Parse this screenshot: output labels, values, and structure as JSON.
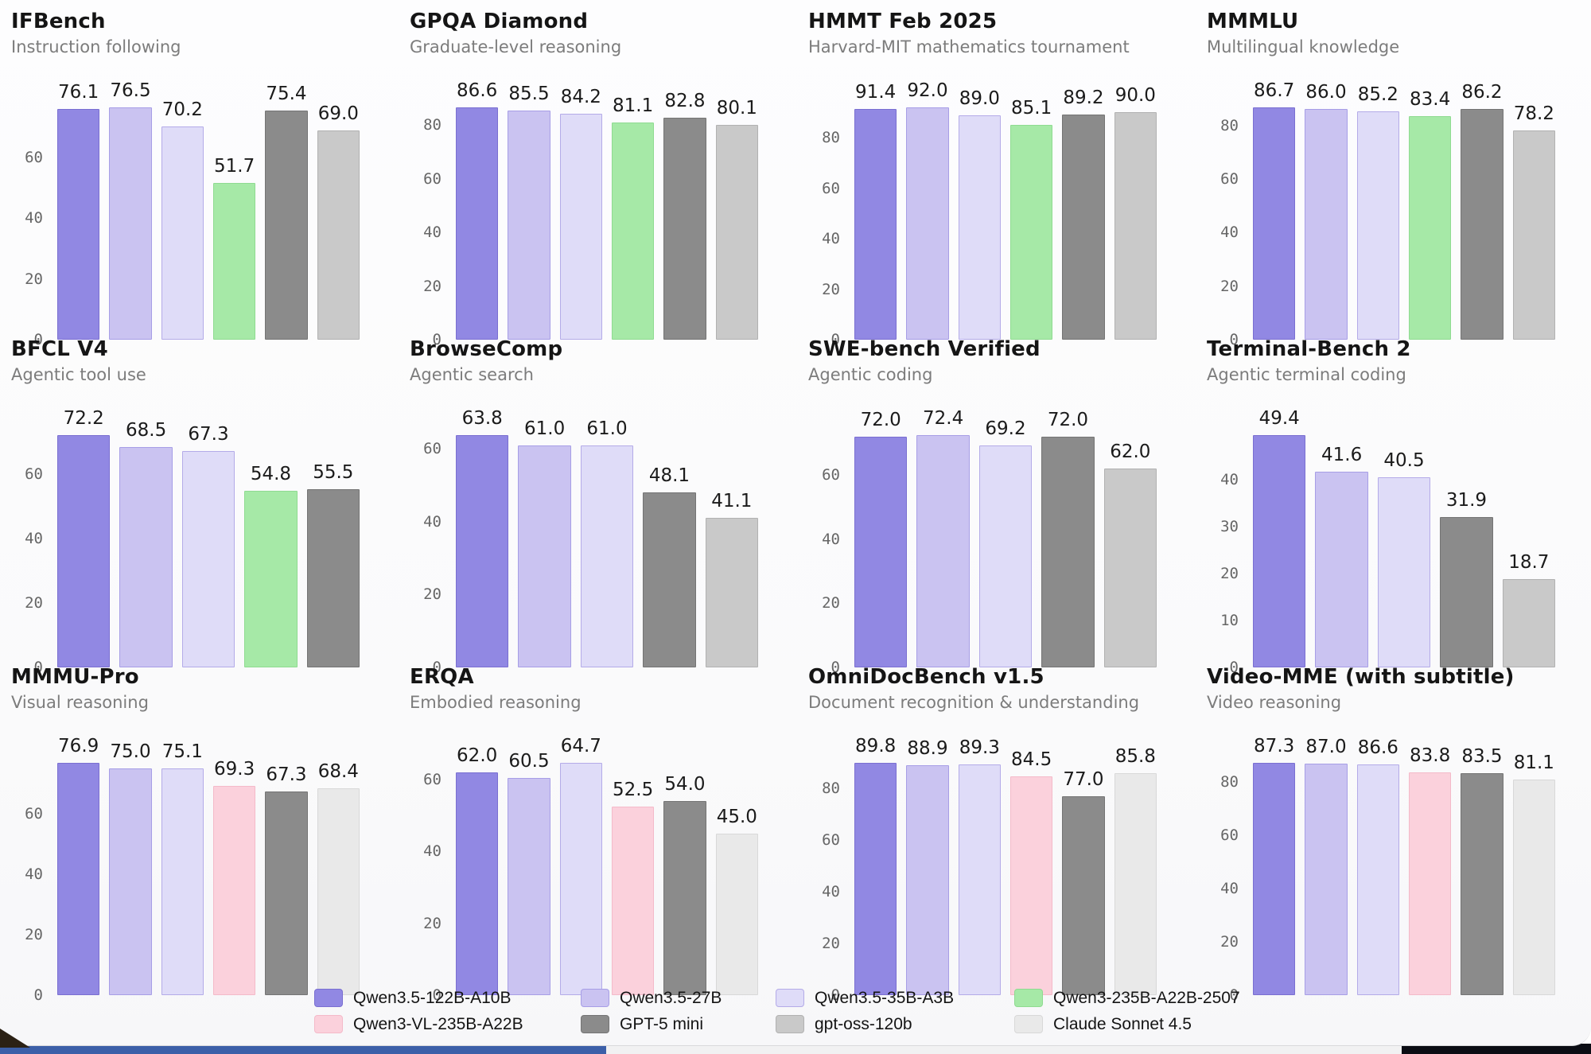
{
  "models": [
    {
      "name": "Qwen3.5-122B-A10B",
      "fill": "#9188e3",
      "border": "#7a6fd1"
    },
    {
      "name": "Qwen3.5-27B",
      "fill": "#cac3f1",
      "border": "#a79ee6"
    },
    {
      "name": "Qwen3.5-35B-A3B",
      "fill": "#dfdcf8",
      "border": "#b4abe8"
    },
    {
      "name": "Qwen3-235B-A22B-2507",
      "fill": "#a6e9a7",
      "border": "#8fdb91"
    },
    {
      "name": "Qwen3-VL-235B-A22B",
      "fill": "#fbd1dc",
      "border": "#f4bac9"
    },
    {
      "name": "GPT-5 mini",
      "fill": "#8b8b8b",
      "border": "#747474"
    },
    {
      "name": "gpt-oss-120b",
      "fill": "#c9c9c9",
      "border": "#b1b1b1"
    },
    {
      "name": "Claude Sonnet 4.5",
      "fill": "#e9e9e9",
      "border": "#d8d8d8"
    }
  ],
  "chart_data": [
    {
      "type": "bar",
      "title": "IFBench",
      "subtitle": "Instruction following",
      "yticks": [
        0,
        20,
        40,
        60
      ],
      "ylim": [
        0,
        76.5
      ],
      "categories": [
        "Qwen3.5-122B-A10B",
        "Qwen3.5-27B",
        "Qwen3.5-35B-A3B",
        "Qwen3-235B-A22B-2507",
        "GPT-5 mini",
        "gpt-oss-120b"
      ],
      "values": [
        76.1,
        76.5,
        70.2,
        51.7,
        75.4,
        69.0
      ]
    },
    {
      "type": "bar",
      "title": "GPQA Diamond",
      "subtitle": "Graduate-level reasoning",
      "yticks": [
        0,
        20,
        40,
        60,
        80
      ],
      "ylim": [
        0,
        86.6
      ],
      "categories": [
        "Qwen3.5-122B-A10B",
        "Qwen3.5-27B",
        "Qwen3.5-35B-A3B",
        "Qwen3-235B-A22B-2507",
        "GPT-5 mini",
        "gpt-oss-120b"
      ],
      "values": [
        86.6,
        85.5,
        84.2,
        81.1,
        82.8,
        80.1
      ]
    },
    {
      "type": "bar",
      "title": "HMMT Feb 2025",
      "subtitle": "Harvard-MIT mathematics tournament",
      "yticks": [
        0,
        20,
        40,
        60,
        80
      ],
      "ylim": [
        0,
        92.0
      ],
      "categories": [
        "Qwen3.5-122B-A10B",
        "Qwen3.5-27B",
        "Qwen3.5-35B-A3B",
        "Qwen3-235B-A22B-2507",
        "GPT-5 mini",
        "gpt-oss-120b"
      ],
      "values": [
        91.4,
        92.0,
        89.0,
        85.1,
        89.2,
        90.0
      ]
    },
    {
      "type": "bar",
      "title": "MMMLU",
      "subtitle": "Multilingual knowledge",
      "yticks": [
        0,
        20,
        40,
        60,
        80
      ],
      "ylim": [
        0,
        86.7
      ],
      "categories": [
        "Qwen3.5-122B-A10B",
        "Qwen3.5-27B",
        "Qwen3.5-35B-A3B",
        "Qwen3-235B-A22B-2507",
        "GPT-5 mini",
        "gpt-oss-120b"
      ],
      "values": [
        86.7,
        86.0,
        85.2,
        83.4,
        86.2,
        78.2
      ]
    },
    {
      "type": "bar",
      "title": "BFCL V4",
      "subtitle": "Agentic tool use",
      "yticks": [
        0,
        20,
        40,
        60
      ],
      "ylim": [
        0,
        72.2
      ],
      "categories": [
        "Qwen3.5-122B-A10B",
        "Qwen3.5-27B",
        "Qwen3.5-35B-A3B",
        "Qwen3-235B-A22B-2507",
        "GPT-5 mini"
      ],
      "values": [
        72.2,
        68.5,
        67.3,
        54.8,
        55.5
      ]
    },
    {
      "type": "bar",
      "title": "BrowseComp",
      "subtitle": "Agentic search",
      "yticks": [
        0,
        20,
        40,
        60
      ],
      "ylim": [
        0,
        63.8
      ],
      "categories": [
        "Qwen3.5-122B-A10B",
        "Qwen3.5-27B",
        "Qwen3.5-35B-A3B",
        "GPT-5 mini",
        "gpt-oss-120b"
      ],
      "values": [
        63.8,
        61.0,
        61.0,
        48.1,
        41.1
      ]
    },
    {
      "type": "bar",
      "title": "SWE-bench Verified",
      "subtitle": "Agentic coding",
      "yticks": [
        0,
        20,
        40,
        60
      ],
      "ylim": [
        0,
        72.4
      ],
      "categories": [
        "Qwen3.5-122B-A10B",
        "Qwen3.5-27B",
        "Qwen3.5-35B-A3B",
        "GPT-5 mini",
        "gpt-oss-120b"
      ],
      "values": [
        72.0,
        72.4,
        69.2,
        72.0,
        62.0
      ]
    },
    {
      "type": "bar",
      "title": "Terminal-Bench 2",
      "subtitle": "Agentic terminal coding",
      "yticks": [
        0,
        10,
        20,
        30,
        40
      ],
      "ylim": [
        0,
        49.4
      ],
      "categories": [
        "Qwen3.5-122B-A10B",
        "Qwen3.5-27B",
        "Qwen3.5-35B-A3B",
        "GPT-5 mini",
        "gpt-oss-120b"
      ],
      "values": [
        49.4,
        41.6,
        40.5,
        31.9,
        18.7
      ]
    },
    {
      "type": "bar",
      "title": "MMMU-Pro",
      "subtitle": "Visual reasoning",
      "yticks": [
        0,
        20,
        40,
        60
      ],
      "ylim": [
        0,
        76.9
      ],
      "categories": [
        "Qwen3.5-122B-A10B",
        "Qwen3.5-27B",
        "Qwen3.5-35B-A3B",
        "Qwen3-VL-235B-A22B",
        "GPT-5 mini",
        "Claude Sonnet 4.5"
      ],
      "values": [
        76.9,
        75.0,
        75.1,
        69.3,
        67.3,
        68.4
      ]
    },
    {
      "type": "bar",
      "title": "ERQA",
      "subtitle": "Embodied reasoning",
      "yticks": [
        0,
        20,
        40,
        60
      ],
      "ylim": [
        0,
        64.7
      ],
      "categories": [
        "Qwen3.5-122B-A10B",
        "Qwen3.5-27B",
        "Qwen3.5-35B-A3B",
        "Qwen3-VL-235B-A22B",
        "GPT-5 mini",
        "Claude Sonnet 4.5"
      ],
      "values": [
        62.0,
        60.5,
        64.7,
        52.5,
        54.0,
        45.0
      ]
    },
    {
      "type": "bar",
      "title": "OmniDocBench v1.5",
      "subtitle": "Document recognition & understanding",
      "yticks": [
        0,
        20,
        40,
        60,
        80
      ],
      "ylim": [
        0,
        89.8
      ],
      "categories": [
        "Qwen3.5-122B-A10B",
        "Qwen3.5-27B",
        "Qwen3.5-35B-A3B",
        "Qwen3-VL-235B-A22B",
        "GPT-5 mini",
        "Claude Sonnet 4.5"
      ],
      "values": [
        89.8,
        88.9,
        89.3,
        84.5,
        77.0,
        85.8
      ]
    },
    {
      "type": "bar",
      "title": "Video-MME (with subtitle)",
      "subtitle": "Video reasoning",
      "yticks": [
        0,
        20,
        40,
        60,
        80
      ],
      "ylim": [
        0,
        87.3
      ],
      "categories": [
        "Qwen3.5-122B-A10B",
        "Qwen3.5-27B",
        "Qwen3.5-35B-A3B",
        "Qwen3-VL-235B-A22B",
        "GPT-5 mini",
        "Claude Sonnet 4.5"
      ],
      "values": [
        87.3,
        87.0,
        86.6,
        83.8,
        83.5,
        81.1
      ]
    }
  ],
  "legend": {
    "rows": [
      [
        "Qwen3.5-122B-A10B",
        "Qwen3.5-27B",
        "Qwen3.5-35B-A3B",
        "Qwen3-235B-A22B-2507"
      ],
      [
        "Qwen3-VL-235B-A22B",
        "GPT-5 mini",
        "gpt-oss-120b",
        "Claude Sonnet 4.5"
      ]
    ]
  }
}
